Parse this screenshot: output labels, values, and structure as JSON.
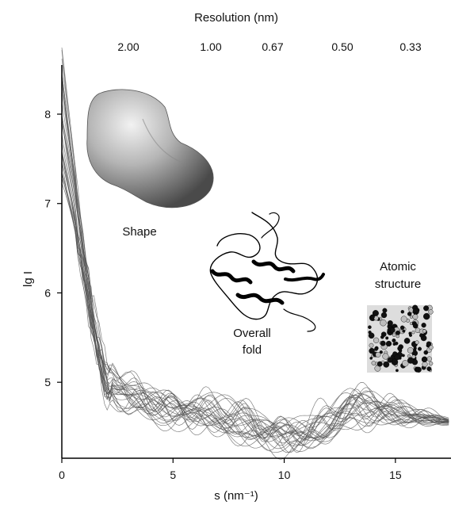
{
  "chart_data": {
    "type": "line",
    "xlabel": "s (nm⁻¹)",
    "ylabel": "lg I",
    "top_axis_label": "Resolution (nm)",
    "xlim": [
      0,
      17.5
    ],
    "ylim": [
      4.15,
      8.55
    ],
    "x_ticks": [
      0,
      5,
      10,
      15
    ],
    "x_tick_labels": [
      "0",
      "5",
      "10",
      "15"
    ],
    "y_ticks": [
      5,
      6,
      7,
      8
    ],
    "y_tick_labels": [
      "5",
      "6",
      "7",
      "8"
    ],
    "top_ticks_s": [
      3.14,
      6.28,
      9.42,
      12.57,
      18.85
    ],
    "top_tick_labels": [
      "2.00",
      "1.00",
      "0.67",
      "0.50",
      "0.33"
    ],
    "grid": false,
    "line_color": "#555555",
    "series_count": 28,
    "series_template": {
      "x": [
        0,
        0.5,
        1,
        1.5,
        2,
        2.5,
        3,
        4,
        5,
        6,
        7,
        8,
        9,
        10,
        11,
        12,
        13,
        14,
        15,
        16,
        17.5
      ],
      "y": [
        8.0,
        7.2,
        6.4,
        5.6,
        5.1,
        4.95,
        4.85,
        4.78,
        4.72,
        4.68,
        4.62,
        4.55,
        4.47,
        4.42,
        4.45,
        4.55,
        4.68,
        4.72,
        4.68,
        4.62,
        4.56
      ]
    },
    "annotations": [
      {
        "text_lines": [
          "Shape"
        ],
        "icon": "protein-envelope-shape"
      },
      {
        "text_lines": [
          "Overall",
          "fold"
        ],
        "icon": "ribbon-fold"
      },
      {
        "text_lines": [
          "Atomic",
          "structure"
        ],
        "icon": "atomic-spheres"
      }
    ]
  }
}
